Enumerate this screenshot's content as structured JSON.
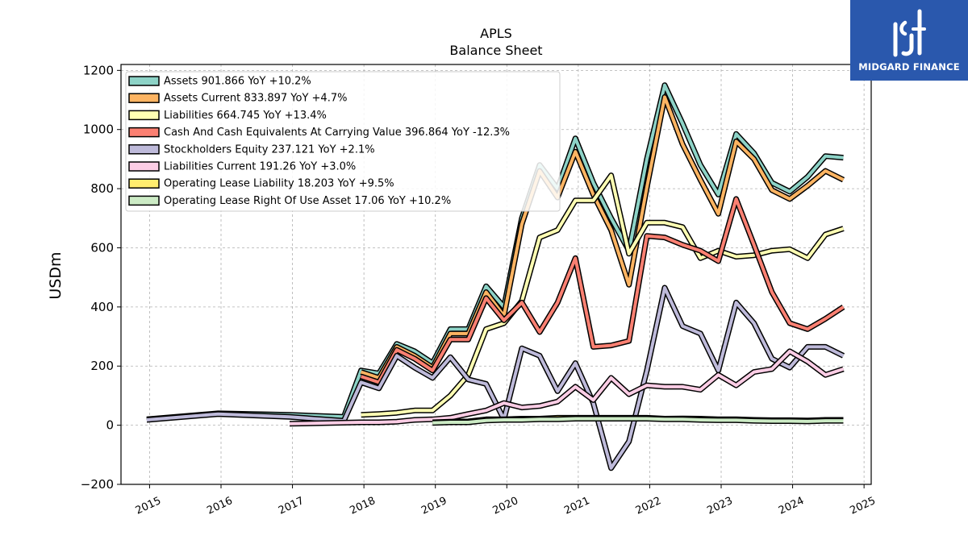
{
  "brand": {
    "name": "MIDGARD FINANCE"
  },
  "chart_data": {
    "type": "line",
    "title": "APLS",
    "subtitle": "Balance  Sheet",
    "xlabel": "",
    "ylabel": "USDm",
    "ylim": [
      -200,
      1220
    ],
    "xlim": [
      2014.6,
      2025.1
    ],
    "yticks": [
      -200,
      0,
      200,
      400,
      600,
      800,
      1000,
      1200
    ],
    "ytick_labels": [
      "−200",
      "0",
      "200",
      "400",
      "600",
      "800",
      "1000",
      "1200"
    ],
    "xticks": [
      2015,
      2016,
      2017,
      2018,
      2019,
      2020,
      2021,
      2022,
      2023,
      2024,
      2025
    ],
    "xtick_labels": [
      "2015",
      "2016",
      "2017",
      "2018",
      "2019",
      "2020",
      "2021",
      "2022",
      "2023",
      "2024",
      "2025"
    ],
    "grid": true,
    "legend_position": "top-left",
    "series": [
      {
        "name": "Assets",
        "legend": "Assets  901.866 YoY +10.2%",
        "color": "#8dd3c7",
        "x": [
          2014.96,
          2015.96,
          2016.96,
          2017.72,
          2017.96,
          2018.21,
          2018.46,
          2018.71,
          2018.96,
          2019.21,
          2019.46,
          2019.71,
          2019.96,
          2020.21,
          2020.46,
          2020.71,
          2020.96,
          2021.21,
          2021.46,
          2021.71,
          2021.96,
          2022.21,
          2022.46,
          2022.71,
          2022.96,
          2023.21,
          2023.46,
          2023.71,
          2023.96,
          2024.21,
          2024.46,
          2024.71
        ],
        "y": [
          20,
          40,
          35,
          28,
          185,
          175,
          275,
          250,
          210,
          325,
          325,
          470,
          400,
          700,
          880,
          800,
          970,
          820,
          700,
          590,
          900,
          1150,
          1020,
          880,
          780,
          985,
          920,
          820,
          790,
          840,
          910,
          905
        ]
      },
      {
        "name": "Assets Current",
        "legend": "Assets Current  833.897 YoY +4.7%",
        "color": "#fdb462",
        "x": [
          2017.96,
          2018.21,
          2018.46,
          2018.71,
          2018.96,
          2019.21,
          2019.46,
          2019.71,
          2019.96,
          2020.21,
          2020.46,
          2020.71,
          2020.96,
          2021.21,
          2021.46,
          2021.71,
          2021.96,
          2022.21,
          2022.46,
          2022.71,
          2022.96,
          2023.21,
          2023.46,
          2023.71,
          2023.96,
          2024.21,
          2024.46,
          2024.71
        ],
        "y": [
          180,
          160,
          265,
          235,
          195,
          310,
          310,
          450,
          370,
          680,
          860,
          770,
          925,
          780,
          660,
          475,
          805,
          1110,
          950,
          830,
          715,
          960,
          900,
          795,
          765,
          810,
          860,
          830
        ]
      },
      {
        "name": "Liabilities",
        "legend": "Liabilities  664.745 YoY +13.4%",
        "color": "#ffffb3",
        "x": [
          2017.96,
          2018.21,
          2018.46,
          2018.71,
          2018.96,
          2019.21,
          2019.46,
          2019.71,
          2019.96,
          2020.21,
          2020.46,
          2020.71,
          2020.96,
          2021.21,
          2021.46,
          2021.71,
          2021.96,
          2022.21,
          2022.46,
          2022.71,
          2022.96,
          2023.21,
          2023.46,
          2023.71,
          2023.96,
          2024.21,
          2024.46,
          2024.71
        ],
        "y": [
          35,
          38,
          42,
          50,
          50,
          100,
          170,
          325,
          345,
          420,
          635,
          660,
          760,
          760,
          845,
          580,
          685,
          685,
          670,
          565,
          590,
          570,
          575,
          590,
          595,
          565,
          645,
          665
        ]
      },
      {
        "name": "Cash And Cash Equivalents At Carrying Value",
        "legend": "Cash And Cash Equivalents At Carrying Value  396.864 YoY -12.3%",
        "color": "#fb8072",
        "x": [
          2017.96,
          2018.21,
          2018.46,
          2018.71,
          2018.96,
          2019.21,
          2019.46,
          2019.71,
          2019.96,
          2020.21,
          2020.46,
          2020.71,
          2020.96,
          2021.21,
          2021.46,
          2021.71,
          2021.96,
          2022.21,
          2022.46,
          2022.71,
          2022.96,
          2023.21,
          2023.46,
          2023.71,
          2023.96,
          2024.21,
          2024.46,
          2024.71
        ],
        "y": [
          165,
          145,
          255,
          225,
          185,
          290,
          290,
          430,
          355,
          415,
          315,
          415,
          565,
          265,
          270,
          285,
          640,
          635,
          610,
          590,
          555,
          765,
          610,
          450,
          345,
          325,
          360,
          400
        ]
      },
      {
        "name": "Stockholders Equity",
        "legend": "Stockholders Equity  237.121 YoY +2.1%",
        "color": "#bebada",
        "x": [
          2014.96,
          2015.96,
          2016.96,
          2017.72,
          2017.96,
          2018.21,
          2018.46,
          2018.71,
          2018.96,
          2019.21,
          2019.46,
          2019.71,
          2019.96,
          2020.21,
          2020.46,
          2020.71,
          2020.96,
          2021.21,
          2021.46,
          2021.71,
          2021.96,
          2022.21,
          2022.46,
          2022.71,
          2022.96,
          2023.21,
          2023.46,
          2023.71,
          2023.96,
          2024.21,
          2024.46,
          2024.71
        ],
        "y": [
          18,
          38,
          28,
          15,
          145,
          125,
          235,
          195,
          160,
          230,
          155,
          140,
          20,
          260,
          235,
          115,
          210,
          75,
          -145,
          -55,
          185,
          465,
          335,
          310,
          185,
          415,
          345,
          225,
          195,
          265,
          265,
          235
        ]
      },
      {
        "name": "Liabilities Current",
        "legend": "Liabilities Current  191.26 YoY +3.0%",
        "color": "#fccde5",
        "x": [
          2016.96,
          2017.96,
          2018.21,
          2018.46,
          2018.71,
          2018.96,
          2019.21,
          2019.46,
          2019.71,
          2019.96,
          2020.21,
          2020.46,
          2020.71,
          2020.96,
          2021.21,
          2021.46,
          2021.71,
          2021.96,
          2022.21,
          2022.46,
          2022.71,
          2022.96,
          2023.21,
          2023.46,
          2023.71,
          2023.96,
          2024.21,
          2024.46,
          2024.71
        ],
        "y": [
          5,
          10,
          10,
          12,
          18,
          20,
          25,
          38,
          50,
          75,
          60,
          65,
          80,
          130,
          85,
          160,
          105,
          135,
          130,
          130,
          120,
          170,
          135,
          180,
          190,
          250,
          215,
          170,
          190
        ]
      },
      {
        "name": "Operating Lease Liability",
        "legend": "Operating Lease Liability  18.203 YoY +9.5%",
        "color": "#ffed6f",
        "x": [
          2018.96,
          2019.21,
          2019.46,
          2019.71,
          2019.96,
          2020.21,
          2020.46,
          2020.71,
          2020.96,
          2021.21,
          2021.46,
          2021.71,
          2021.96,
          2022.21,
          2022.46,
          2022.71,
          2022.96,
          2023.21,
          2023.46,
          2023.71,
          2023.96,
          2024.21,
          2024.46,
          2024.71
        ],
        "y": [
          10,
          12,
          13,
          20,
          20,
          22,
          22,
          25,
          25,
          25,
          25,
          25,
          25,
          22,
          23,
          22,
          20,
          20,
          18,
          17,
          17,
          16,
          18,
          18
        ]
      },
      {
        "name": "Operating Lease Right Of Use Asset",
        "legend": "Operating Lease Right Of Use Asset  17.06 YoY +10.2%",
        "color": "#ccebc5",
        "x": [
          2018.96,
          2019.21,
          2019.46,
          2019.71,
          2019.96,
          2020.21,
          2020.46,
          2020.71,
          2020.96,
          2021.21,
          2021.46,
          2021.71,
          2021.96,
          2022.21,
          2022.46,
          2022.71,
          2022.96,
          2023.21,
          2023.46,
          2023.71,
          2023.96,
          2024.21,
          2024.46,
          2024.71
        ],
        "y": [
          8,
          10,
          10,
          16,
          18,
          18,
          20,
          20,
          22,
          22,
          22,
          22,
          22,
          20,
          20,
          18,
          17,
          17,
          15,
          14,
          14,
          13,
          15,
          15
        ]
      }
    ]
  }
}
